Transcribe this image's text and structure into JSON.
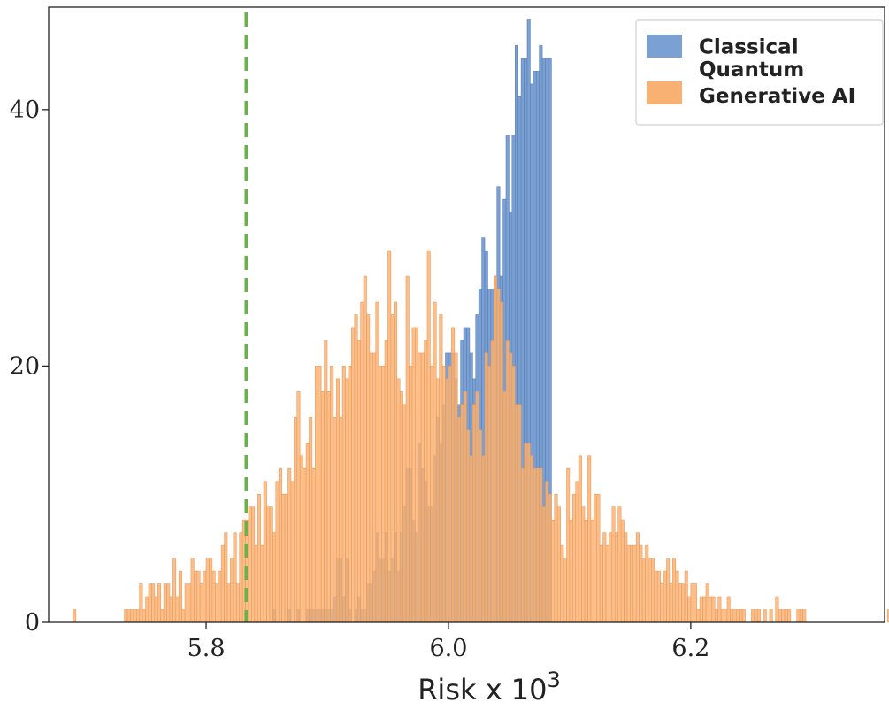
{
  "chart_data": {
    "type": "bar",
    "subtype": "overlapping-histogram",
    "title": "",
    "xlabel": "Risk x 10",
    "xlabel_superscript": "3",
    "ylabel": "",
    "xlim": [
      5.67,
      6.36
    ],
    "ylim": [
      0,
      48
    ],
    "xticks": [
      5.8,
      6.0,
      6.2
    ],
    "xtick_labels": [
      "5.8",
      "6.0",
      "6.2"
    ],
    "yticks": [
      0,
      20,
      40
    ],
    "ytick_labels": [
      "0",
      "20",
      "40"
    ],
    "bin_width": 0.0025,
    "grid": false,
    "legend_position": "top-right",
    "reference_line": {
      "x": 5.833,
      "style": "dashed",
      "color": "#6ab04c"
    },
    "series": [
      {
        "name": "Classical",
        "color": "#7ba0d3",
        "edge": "#5a7fb5",
        "bin_start": 5.855,
        "counts": [
          1,
          0,
          0,
          0,
          0,
          1,
          0,
          0,
          1,
          0,
          0,
          1,
          1,
          1,
          1,
          1,
          1,
          1,
          1,
          1,
          2,
          5,
          5,
          2,
          5,
          1,
          0,
          1,
          2,
          1,
          1,
          3,
          3,
          4,
          7,
          5,
          5,
          7,
          4,
          5,
          7,
          4,
          7,
          9,
          12,
          12,
          8,
          7,
          14,
          12,
          11,
          9,
          9,
          13,
          16,
          14,
          17,
          21,
          21,
          21,
          19,
          17,
          22,
          23,
          23,
          21,
          19,
          24,
          26,
          30,
          29,
          26,
          26,
          27,
          34,
          27,
          33,
          38,
          32,
          38,
          45,
          41,
          44,
          44,
          47,
          42,
          43,
          43,
          45,
          44,
          44,
          44
        ]
      },
      {
        "name": "Quantum Generative AI",
        "color": "#f9b173",
        "edge": "#f09a52",
        "bin_start": 5.69,
        "counts": [
          1,
          0,
          0,
          0,
          0,
          0,
          0,
          0,
          0,
          0,
          0,
          0,
          0,
          0,
          0,
          0,
          0,
          1,
          1,
          1,
          1,
          1,
          3,
          1,
          2,
          3,
          3,
          2,
          3,
          1,
          3,
          3,
          2,
          5,
          2,
          4,
          1,
          3,
          3,
          5,
          4,
          4,
          3,
          4,
          5,
          5,
          4,
          3,
          4,
          6,
          7,
          3,
          5,
          7,
          3,
          7,
          8,
          8,
          9,
          9,
          6,
          10,
          6,
          11,
          9,
          9,
          7,
          11,
          12,
          10,
          10,
          12,
          11,
          16,
          18,
          13,
          12,
          14,
          16,
          12,
          20,
          20,
          18,
          22,
          18,
          20,
          16,
          19,
          16,
          20,
          19,
          20,
          23,
          24,
          22,
          25,
          27,
          24,
          21,
          21,
          25,
          20,
          20,
          22,
          29,
          24,
          25,
          19,
          18,
          17,
          27,
          20,
          23,
          23,
          21,
          21,
          22,
          29,
          20,
          25,
          19,
          24,
          20,
          19,
          20,
          23,
          21,
          16,
          17,
          18,
          15,
          13,
          17,
          18,
          15,
          13,
          21,
          20,
          22,
          27,
          26,
          25,
          18,
          22,
          21,
          20,
          17,
          17,
          12,
          14,
          14,
          13,
          12,
          12,
          12,
          9,
          11,
          10,
          8,
          10,
          9,
          6,
          5,
          12,
          8,
          10,
          11,
          13,
          9,
          8,
          13,
          8,
          10,
          10,
          6,
          7,
          6,
          7,
          9,
          7,
          9,
          8,
          7,
          6,
          6,
          6,
          7,
          6,
          5,
          6,
          5,
          5,
          4,
          4,
          3,
          4,
          5,
          3,
          5,
          4,
          3,
          3,
          4,
          2,
          3,
          3,
          1,
          2,
          2,
          3,
          2,
          2,
          1,
          2,
          1,
          1,
          2,
          1,
          1,
          1,
          1,
          1,
          0,
          0,
          1,
          1,
          1,
          0,
          1,
          0,
          1,
          0,
          2,
          1,
          1,
          1,
          1,
          0,
          0,
          1,
          1,
          1,
          0,
          0,
          0,
          0,
          0,
          0,
          0,
          0,
          0,
          0,
          0,
          0,
          0,
          0,
          0,
          0,
          0,
          0,
          0,
          0,
          0,
          0,
          0,
          0,
          0,
          0,
          0,
          1
        ]
      }
    ]
  }
}
